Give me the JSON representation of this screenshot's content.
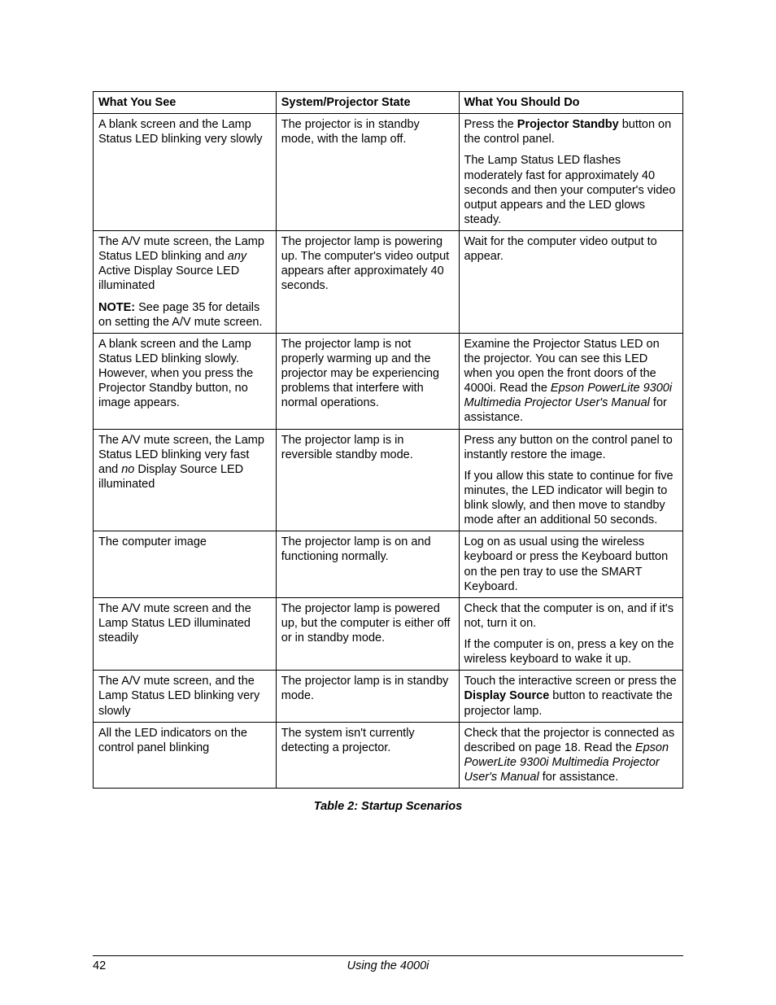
{
  "table": {
    "headers": [
      "What You See",
      "System/Projector State",
      "What You Should Do"
    ],
    "rows": [
      {
        "see": [
          {
            "runs": [
              {
                "t": "A blank screen and the Lamp Status LED blinking very slowly"
              }
            ]
          }
        ],
        "state": [
          {
            "runs": [
              {
                "t": "The projector is in standby mode, with the lamp off."
              }
            ]
          }
        ],
        "do": [
          {
            "runs": [
              {
                "t": "Press the "
              },
              {
                "t": "Projector Standby",
                "b": true
              },
              {
                "t": " button on the control panel."
              }
            ]
          },
          {
            "runs": [
              {
                "t": "The Lamp Status LED flashes moderately fast for approximately 40 seconds and then your computer's video output appears and the LED glows steady."
              }
            ]
          }
        ]
      },
      {
        "see": [
          {
            "runs": [
              {
                "t": "The A/V mute screen, the Lamp Status LED blinking and "
              },
              {
                "t": "any",
                "i": true
              },
              {
                "t": " Active Display Source LED illuminated"
              }
            ]
          },
          {
            "runs": [
              {
                "t": "NOTE:",
                "b": true
              },
              {
                "t": " See page 35 for details on setting the A/V mute screen."
              }
            ]
          }
        ],
        "state": [
          {
            "runs": [
              {
                "t": "The projector lamp is powering up. The computer's video output appears after approximately 40 seconds."
              }
            ]
          }
        ],
        "do": [
          {
            "runs": [
              {
                "t": "Wait for the computer video output to appear."
              }
            ]
          }
        ]
      },
      {
        "see": [
          {
            "runs": [
              {
                "t": "A blank screen and the Lamp Status LED blinking slowly. However, when you press the Projector Standby button, no image appears."
              }
            ]
          }
        ],
        "state": [
          {
            "runs": [
              {
                "t": "The projector lamp is not properly warming up and the projector may be experiencing problems that interfere with normal operations."
              }
            ]
          }
        ],
        "do": [
          {
            "runs": [
              {
                "t": "Examine the Projector Status LED on the projector. You can see this LED when you open the front doors of the 4000i. Read the "
              },
              {
                "t": "Epson PowerLite 9300i Multimedia Projector User's Manual",
                "i": true
              },
              {
                "t": " for assistance."
              }
            ]
          }
        ]
      },
      {
        "see": [
          {
            "runs": [
              {
                "t": "The A/V mute screen, the Lamp Status LED blinking very fast and "
              },
              {
                "t": "no",
                "i": true
              },
              {
                "t": " Display Source LED illuminated"
              }
            ]
          }
        ],
        "state": [
          {
            "runs": [
              {
                "t": "The projector lamp is in reversible standby mode."
              }
            ]
          }
        ],
        "do": [
          {
            "runs": [
              {
                "t": "Press any button on the control panel to instantly restore the image."
              }
            ]
          },
          {
            "runs": [
              {
                "t": "If you allow this state to continue for five minutes, the LED indicator will begin to blink slowly, and then move to standby mode after an additional 50 seconds."
              }
            ]
          }
        ]
      },
      {
        "see": [
          {
            "runs": [
              {
                "t": "The computer image"
              }
            ]
          }
        ],
        "state": [
          {
            "runs": [
              {
                "t": "The projector lamp is on and functioning normally."
              }
            ]
          }
        ],
        "do": [
          {
            "runs": [
              {
                "t": "Log on as usual using the wireless keyboard or press the Keyboard button on the pen tray to use the SMART Keyboard."
              }
            ]
          }
        ]
      },
      {
        "see": [
          {
            "runs": [
              {
                "t": "The A/V mute screen and the Lamp Status LED illuminated steadily"
              }
            ]
          }
        ],
        "state": [
          {
            "runs": [
              {
                "t": "The projector lamp is powered up, but the computer is either off or in standby mode."
              }
            ]
          }
        ],
        "do": [
          {
            "runs": [
              {
                "t": "Check that the computer is on, and if it's not, turn it on."
              }
            ]
          },
          {
            "runs": [
              {
                "t": "If the computer is on, press a key on the wireless keyboard to wake it up."
              }
            ]
          }
        ]
      },
      {
        "see": [
          {
            "runs": [
              {
                "t": "The A/V mute screen, and the Lamp Status LED blinking very slowly"
              }
            ]
          }
        ],
        "state": [
          {
            "runs": [
              {
                "t": "The projector lamp is in standby mode."
              }
            ]
          }
        ],
        "do": [
          {
            "runs": [
              {
                "t": "Touch the interactive screen or press the "
              },
              {
                "t": "Display Source",
                "b": true
              },
              {
                "t": " button to reactivate the projector lamp."
              }
            ]
          }
        ]
      },
      {
        "see": [
          {
            "runs": [
              {
                "t": "All the LED indicators on the control panel blinking"
              }
            ]
          }
        ],
        "state": [
          {
            "runs": [
              {
                "t": "The system isn't currently detecting a projector."
              }
            ]
          }
        ],
        "do": [
          {
            "runs": [
              {
                "t": "Check that the projector is connected as described on page 18. Read the "
              },
              {
                "t": "Epson PowerLite 9300i Multimedia Projector User's Manual",
                "i": true
              },
              {
                "t": " for assistance."
              }
            ]
          }
        ]
      }
    ]
  },
  "caption": "Table 2: Startup Scenarios",
  "footer": {
    "page": "42",
    "title": "Using the 4000i"
  }
}
